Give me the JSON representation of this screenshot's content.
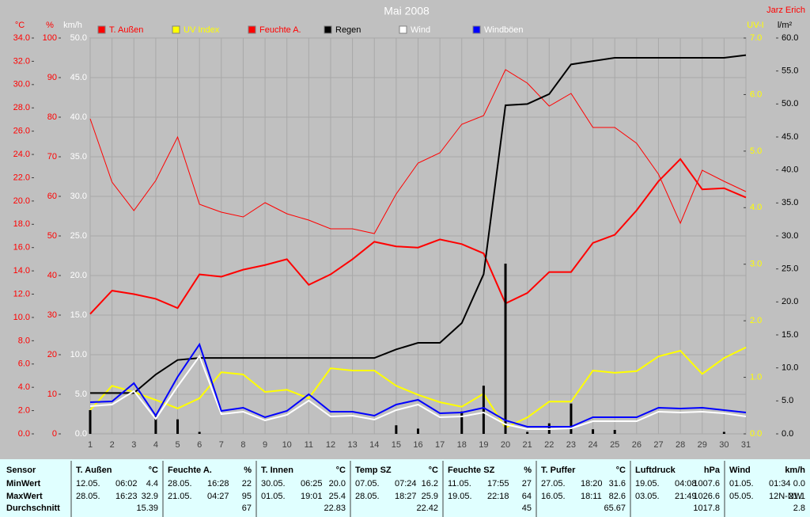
{
  "chart_data": {
    "type": "line",
    "title": "Mai 2008",
    "author": "Jarz Erich",
    "grid": true,
    "categories": [
      "1",
      "2",
      "3",
      "4",
      "5",
      "6",
      "7",
      "8",
      "9",
      "10",
      "11",
      "12",
      "13",
      "14",
      "15",
      "16",
      "17",
      "18",
      "19",
      "20",
      "21",
      "22",
      "23",
      "24",
      "25",
      "26",
      "27",
      "28",
      "29",
      "30",
      "31"
    ],
    "axes": [
      {
        "label": "°C",
        "color": "#ff0000",
        "lim": [
          0,
          34
        ],
        "ticks": [
          {
            "value": 0,
            "label": "0.0"
          },
          {
            "value": 2,
            "label": "2.0"
          },
          {
            "value": 4,
            "label": "4.0"
          },
          {
            "value": 6,
            "label": "6.0"
          },
          {
            "value": 8,
            "label": "8.0"
          },
          {
            "value": 10,
            "label": "10.0"
          },
          {
            "value": 12,
            "label": "12.0"
          },
          {
            "value": 14,
            "label": "14.0"
          },
          {
            "value": 16,
            "label": "16.0"
          },
          {
            "value": 18,
            "label": "18.0"
          },
          {
            "value": 20,
            "label": "20.0"
          },
          {
            "value": 22,
            "label": "22.0"
          },
          {
            "value": 24,
            "label": "24.0"
          },
          {
            "value": 26,
            "label": "26.0"
          },
          {
            "value": 28,
            "label": "28.0"
          },
          {
            "value": 30,
            "label": "30.0"
          },
          {
            "value": 32,
            "label": "32.0"
          },
          {
            "value": 34,
            "label": "34.0"
          }
        ]
      },
      {
        "label": "%",
        "color": "#ff0000",
        "lim": [
          0,
          100
        ],
        "ticks": [
          0,
          10,
          20,
          30,
          40,
          50,
          60,
          70,
          80,
          90,
          100
        ]
      },
      {
        "label": "km/h",
        "color": "#ffffff",
        "lim": [
          0,
          50
        ],
        "ticks": [
          {
            "value": 0,
            "label": "0.0"
          },
          {
            "value": 5,
            "label": "5.0"
          },
          {
            "value": 10,
            "label": "10.0"
          },
          {
            "value": 15,
            "label": "15.0"
          },
          {
            "value": 20,
            "label": "20.0"
          },
          {
            "value": 25,
            "label": "25.0"
          },
          {
            "value": 30,
            "label": "30.0"
          },
          {
            "value": 35,
            "label": "35.0"
          },
          {
            "value": 40,
            "label": "40.0"
          },
          {
            "value": 45,
            "label": "45.0"
          },
          {
            "value": 50,
            "label": "50.0"
          }
        ]
      },
      {
        "label": "UV-I",
        "color": "#ffff00",
        "lim": [
          0,
          7
        ],
        "ticks": [
          {
            "value": 0,
            "label": "0.0"
          },
          {
            "value": 1,
            "label": "1.0"
          },
          {
            "value": 2,
            "label": "2.0"
          },
          {
            "value": 3,
            "label": "3.0"
          },
          {
            "value": 4,
            "label": "4.0"
          },
          {
            "value": 5,
            "label": "5.0"
          },
          {
            "value": 6,
            "label": "6.0"
          },
          {
            "value": 7,
            "label": "7.0"
          }
        ]
      },
      {
        "label": "l/m²",
        "color": "#000000",
        "lim": [
          0,
          60
        ],
        "ticks": [
          {
            "value": 0,
            "label": "0.0"
          },
          {
            "value": 5,
            "label": "5.0"
          },
          {
            "value": 10,
            "label": "10.0"
          },
          {
            "value": 15,
            "label": "15.0"
          },
          {
            "value": 20,
            "label": "20.0"
          },
          {
            "value": 25,
            "label": "25.0"
          },
          {
            "value": 30,
            "label": "30.0"
          },
          {
            "value": 35,
            "label": "35.0"
          },
          {
            "value": 40,
            "label": "40.0"
          },
          {
            "value": 45,
            "label": "45.0"
          },
          {
            "value": 50,
            "label": "50.0"
          },
          {
            "value": 55,
            "label": "55.0"
          },
          {
            "value": 60,
            "label": "60.0"
          }
        ]
      }
    ],
    "series": [
      {
        "name": "T. Außen",
        "color": "#ff0000",
        "label_color": "#ff0000",
        "axis": 0,
        "width": 2,
        "values": [
          10.3,
          12.3,
          12.0,
          11.6,
          10.8,
          13.7,
          13.5,
          14.1,
          14.5,
          15.0,
          12.8,
          13.7,
          15.0,
          16.5,
          16.1,
          16.0,
          16.7,
          16.3,
          15.5,
          11.2,
          12.1,
          13.9,
          13.9,
          16.4,
          17.1,
          19.2,
          21.7,
          23.6,
          21.0,
          21.1,
          20.3
        ]
      },
      {
        "name": "UV Index",
        "color": "#ffff00",
        "label_color": "#ffff00",
        "axis": 3,
        "width": 2,
        "values": [
          0.42,
          0.85,
          0.74,
          0.6,
          0.45,
          0.63,
          1.09,
          1.05,
          0.74,
          0.78,
          0.63,
          1.16,
          1.12,
          1.12,
          0.85,
          0.69,
          0.56,
          0.48,
          0.71,
          0.11,
          0.29,
          0.57,
          0.57,
          1.12,
          1.08,
          1.11,
          1.37,
          1.47,
          1.06,
          1.34,
          1.53
        ]
      },
      {
        "name": "Feuchte A.",
        "color": "#ff0000",
        "label_color": "#ff0000",
        "axis": 1,
        "width": 1,
        "values": [
          79.6,
          63.6,
          56.4,
          64,
          75,
          58,
          56,
          54.8,
          58.4,
          55.6,
          54,
          51.8,
          51.8,
          50.6,
          60.6,
          68.4,
          71,
          78.2,
          80.4,
          92,
          88.6,
          82.8,
          86,
          77.4,
          77.4,
          73.4,
          65.6,
          53.2,
          66.6,
          63.8,
          61.2
        ]
      },
      {
        "name": "Regen",
        "color": "#000000",
        "label_color": "#000000",
        "axis": 4,
        "width": 2,
        "values": [
          6.2,
          6.2,
          6.2,
          9.0,
          11.2,
          11.5,
          11.5,
          11.5,
          11.5,
          11.5,
          11.5,
          11.5,
          11.5,
          11.5,
          12.8,
          13.8,
          13.8,
          16.8,
          24.2,
          49.8,
          50.0,
          51.5,
          56.0,
          56.5,
          57.0,
          57.0,
          57.0,
          57.0,
          57.0,
          57.0,
          57.4
        ],
        "bars": [
          3.6,
          0,
          0,
          2.8,
          2.2,
          0.3,
          0,
          0,
          0,
          0,
          0,
          0,
          0,
          0,
          1.3,
          0.8,
          0,
          3.4,
          7.3,
          25.8,
          0.3,
          1.6,
          4.6,
          0.7,
          0.6,
          0,
          0,
          0,
          0,
          0.3,
          0
        ]
      },
      {
        "name": "Wind",
        "color": "#ffffff",
        "label_color": "#ffffff",
        "axis": 2,
        "width": 2,
        "values": [
          3.5,
          3.7,
          5.4,
          1.9,
          6.0,
          9.8,
          2.5,
          2.8,
          1.7,
          2.4,
          4.2,
          2.2,
          2.3,
          1.8,
          3.0,
          3.7,
          2.1,
          2.2,
          2.7,
          1.2,
          0.6,
          0.6,
          0.7,
          1.6,
          1.6,
          1.6,
          2.8,
          2.7,
          2.8,
          2.6,
          2.2
        ]
      },
      {
        "name": "Windböen",
        "color": "#0000ff",
        "label_color": "#ffffff",
        "axis": 2,
        "width": 2,
        "values": [
          4.0,
          4.1,
          6.4,
          2.3,
          7.2,
          11.3,
          2.9,
          3.3,
          2.1,
          2.9,
          5.0,
          2.8,
          2.8,
          2.3,
          3.7,
          4.3,
          2.6,
          2.7,
          3.3,
          1.7,
          0.9,
          0.9,
          0.9,
          2.1,
          2.1,
          2.1,
          3.3,
          3.2,
          3.3,
          3.0,
          2.7
        ]
      }
    ]
  },
  "stats": {
    "row_labels": [
      "Sensor",
      "MinWert",
      "MaxWert",
      "Durchschnitt"
    ],
    "sensors": [
      {
        "name": "T. Außen",
        "unit": "°C",
        "min": [
          "12.05.",
          "06:02",
          "4.4"
        ],
        "max": [
          "28.05.",
          "16:23",
          "32.9"
        ],
        "avg": "15.39"
      },
      {
        "name": "Feuchte A.",
        "unit": "%",
        "min": [
          "28.05.",
          "16:28",
          "22"
        ],
        "max": [
          "21.05.",
          "04:27",
          "95"
        ],
        "avg": "67"
      },
      {
        "name": "T. Innen",
        "unit": "°C",
        "min": [
          "30.05.",
          "06:25",
          "20.0"
        ],
        "max": [
          "01.05.",
          "19:01",
          "25.4"
        ],
        "avg": "22.83"
      },
      {
        "name": "Temp SZ",
        "unit": "°C",
        "min": [
          "07.05.",
          "07:24",
          "16.2"
        ],
        "max": [
          "28.05.",
          "18:27",
          "25.9"
        ],
        "avg": "22.42"
      },
      {
        "name": "Feuchte SZ",
        "unit": "%",
        "min": [
          "11.05.",
          "17:55",
          "27"
        ],
        "max": [
          "19.05.",
          "22:18",
          "64"
        ],
        "avg": "45"
      },
      {
        "name": "T. Puffer",
        "unit": "°C",
        "min": [
          "27.05.",
          "18:20",
          "31.6"
        ],
        "max": [
          "16.05.",
          "18:11",
          "82.6"
        ],
        "avg": "65.67"
      },
      {
        "name": "Luftdruck",
        "unit": "hPa",
        "min": [
          "19.05.",
          "04:08",
          "1007.6"
        ],
        "max": [
          "03.05.",
          "21:49",
          "1026.6"
        ],
        "avg": "1017.8"
      },
      {
        "name": "Wind",
        "unit": "km/h",
        "min": [
          "01.05.",
          "01:34",
          "0.0"
        ],
        "max": [
          "05.05.",
          "12N-NW",
          "21.1"
        ],
        "avg": "2.8"
      }
    ]
  }
}
